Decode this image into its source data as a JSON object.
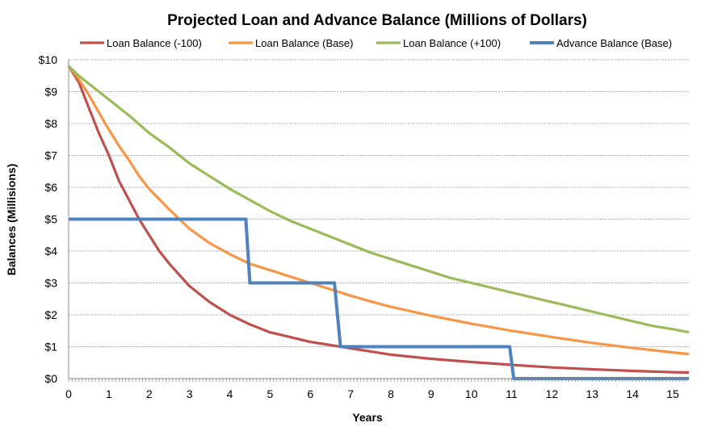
{
  "chart_data": {
    "type": "line",
    "title": "Projected Loan and Advance Balance (Millions of Dollars)",
    "xlabel": "Years",
    "ylabel": "Balances (Millisions)",
    "xlim": [
      0,
      15.4
    ],
    "ylim": [
      0,
      10
    ],
    "x_ticks": [
      0,
      1,
      2,
      3,
      4,
      5,
      6,
      7,
      8,
      9,
      10,
      11,
      12,
      13,
      14,
      15
    ],
    "x_tick_labels": [
      "0",
      "1",
      "2",
      "3",
      "4",
      "5",
      "6",
      "7",
      "8",
      "9",
      "10",
      "11",
      "12",
      "13",
      "14",
      "15"
    ],
    "y_ticks": [
      0,
      1,
      2,
      3,
      4,
      5,
      6,
      7,
      8,
      9,
      10
    ],
    "y_tick_labels": [
      "$0",
      "$1",
      "$2",
      "$3",
      "$4",
      "$5",
      "$6",
      "$7",
      "$8",
      "$9",
      "$10"
    ],
    "grid": "horizontal dashed",
    "legend_position": "top",
    "series": [
      {
        "name": "Loan Balance (-100)",
        "color": "#c0504d",
        "points": [
          [
            0,
            9.8
          ],
          [
            0.25,
            9.3
          ],
          [
            0.5,
            8.5
          ],
          [
            0.75,
            7.7
          ],
          [
            1,
            7.0
          ],
          [
            1.25,
            6.2
          ],
          [
            1.5,
            5.6
          ],
          [
            1.75,
            5.0
          ],
          [
            2,
            4.5
          ],
          [
            2.25,
            4.0
          ],
          [
            2.5,
            3.6
          ],
          [
            2.75,
            3.25
          ],
          [
            3,
            2.9
          ],
          [
            3.5,
            2.4
          ],
          [
            4,
            2.0
          ],
          [
            4.5,
            1.7
          ],
          [
            5,
            1.45
          ],
          [
            5.5,
            1.3
          ],
          [
            6,
            1.15
          ],
          [
            6.5,
            1.05
          ],
          [
            7,
            0.95
          ],
          [
            7.5,
            0.85
          ],
          [
            8,
            0.75
          ],
          [
            9,
            0.62
          ],
          [
            10,
            0.52
          ],
          [
            11,
            0.43
          ],
          [
            12,
            0.35
          ],
          [
            13,
            0.29
          ],
          [
            14,
            0.24
          ],
          [
            15,
            0.2
          ],
          [
            15.4,
            0.19
          ]
        ]
      },
      {
        "name": "Loan Balance (Base)",
        "color": "#f79646",
        "points": [
          [
            0,
            9.8
          ],
          [
            0.25,
            9.4
          ],
          [
            0.5,
            8.9
          ],
          [
            0.75,
            8.35
          ],
          [
            1,
            7.8
          ],
          [
            1.25,
            7.3
          ],
          [
            1.5,
            6.85
          ],
          [
            1.75,
            6.35
          ],
          [
            2,
            5.95
          ],
          [
            2.5,
            5.3
          ],
          [
            3,
            4.7
          ],
          [
            3.5,
            4.25
          ],
          [
            4,
            3.9
          ],
          [
            4.5,
            3.6
          ],
          [
            5,
            3.4
          ],
          [
            5.5,
            3.2
          ],
          [
            6,
            3.0
          ],
          [
            6.5,
            2.8
          ],
          [
            7,
            2.6
          ],
          [
            7.5,
            2.42
          ],
          [
            8,
            2.25
          ],
          [
            9,
            1.97
          ],
          [
            10,
            1.72
          ],
          [
            11,
            1.5
          ],
          [
            12,
            1.3
          ],
          [
            13,
            1.12
          ],
          [
            14,
            0.96
          ],
          [
            15,
            0.82
          ],
          [
            15.4,
            0.77
          ]
        ]
      },
      {
        "name": "Loan Balance (+100)",
        "color": "#9bbb59",
        "points": [
          [
            0,
            9.8
          ],
          [
            0.25,
            9.5
          ],
          [
            0.5,
            9.25
          ],
          [
            1,
            8.75
          ],
          [
            1.5,
            8.25
          ],
          [
            2,
            7.7
          ],
          [
            2.5,
            7.25
          ],
          [
            3,
            6.75
          ],
          [
            3.5,
            6.35
          ],
          [
            4,
            5.95
          ],
          [
            4.5,
            5.6
          ],
          [
            5,
            5.25
          ],
          [
            5.5,
            4.95
          ],
          [
            6,
            4.7
          ],
          [
            6.5,
            4.45
          ],
          [
            7,
            4.2
          ],
          [
            7.5,
            3.95
          ],
          [
            8,
            3.75
          ],
          [
            8.5,
            3.55
          ],
          [
            9,
            3.35
          ],
          [
            9.5,
            3.15
          ],
          [
            10,
            3.0
          ],
          [
            10.5,
            2.85
          ],
          [
            11,
            2.7
          ],
          [
            11.5,
            2.55
          ],
          [
            12,
            2.4
          ],
          [
            12.5,
            2.25
          ],
          [
            13,
            2.1
          ],
          [
            13.5,
            1.95
          ],
          [
            14,
            1.8
          ],
          [
            14.5,
            1.65
          ],
          [
            15,
            1.55
          ],
          [
            15.4,
            1.45
          ]
        ]
      },
      {
        "name": "Advance Balance (Base)",
        "color": "#4f81bd",
        "points": [
          [
            0,
            5
          ],
          [
            4.4,
            5
          ],
          [
            4.5,
            3
          ],
          [
            6.6,
            3
          ],
          [
            6.75,
            1
          ],
          [
            10.95,
            1
          ],
          [
            11.05,
            0
          ],
          [
            15.4,
            0
          ]
        ]
      }
    ]
  }
}
